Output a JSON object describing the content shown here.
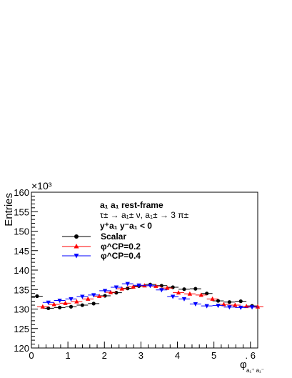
{
  "chart_data": {
    "type": "scatter",
    "ylabel": "Entries",
    "y_exponent": "×10³",
    "xlabel_main": "φ",
    "xlabel_sub": "a₁⁺ a₁⁻",
    "xlim": [
      0,
      6.2
    ],
    "ylim": [
      120,
      160
    ],
    "x_ticks": [
      0,
      1,
      2,
      3,
      4,
      5,
      6
    ],
    "x_tick_labels": [
      "0",
      "1",
      "2",
      "3",
      "4",
      "5",
      ". 6"
    ],
    "y_ticks": [
      120,
      125,
      130,
      135,
      140,
      145,
      150,
      155,
      160
    ],
    "annotations": [
      "a₁ a₁  rest-frame",
      "τ± → a₁± ν, a₁± → 3 π±",
      "y⁺a₁ y⁻a₁ < 0"
    ],
    "bin_half_width": 0.155,
    "series": [
      {
        "name": "Scalar",
        "color": "#000000",
        "marker": "circle",
        "x": [
          0.155,
          0.465,
          0.775,
          1.085,
          1.395,
          1.705,
          2.015,
          2.325,
          2.635,
          2.945,
          3.255,
          3.565,
          3.875,
          4.185,
          4.495,
          4.805,
          5.115,
          5.425,
          5.735,
          6.045
        ],
        "values": [
          133.3,
          130.2,
          130.4,
          130.6,
          131.0,
          131.4,
          133.4,
          134.2,
          135.3,
          135.9,
          136.3,
          136.0,
          135.6,
          135.1,
          135.2,
          134.0,
          132.1,
          131.8,
          132.0,
          130.8
        ]
      },
      {
        "name": "φ^CP=0.2",
        "color": "#ff0000",
        "marker": "triangle-up",
        "x": [
          0.31,
          0.62,
          0.93,
          1.24,
          1.55,
          1.86,
          2.17,
          2.48,
          2.79,
          3.1,
          3.41,
          3.72,
          4.03,
          4.34,
          4.65,
          4.96,
          5.27,
          5.58,
          5.89,
          6.2
        ],
        "values": [
          130.6,
          131.2,
          131.5,
          131.9,
          132.6,
          133.3,
          134.3,
          135.2,
          135.7,
          136.0,
          135.9,
          135.4,
          134.2,
          133.9,
          133.6,
          132.6,
          131.2,
          131.0,
          130.7,
          130.6
        ]
      },
      {
        "name": "φ^CP=0.4",
        "color": "#0000ff",
        "marker": "triangle-down",
        "x": [
          0.465,
          0.775,
          1.085,
          1.395,
          1.705,
          2.015,
          2.325,
          2.635,
          2.945,
          3.255,
          3.565,
          3.875,
          4.185,
          4.495,
          4.805,
          5.115,
          5.425,
          5.735,
          6.045
        ],
        "values": [
          131.7,
          132.2,
          132.6,
          133.2,
          133.6,
          134.7,
          135.6,
          136.5,
          136.1,
          136.0,
          134.9,
          133.2,
          132.6,
          131.3,
          130.8,
          130.9,
          130.5,
          130.4,
          130.5
        ]
      }
    ],
    "legend_placement": "upper-left"
  }
}
